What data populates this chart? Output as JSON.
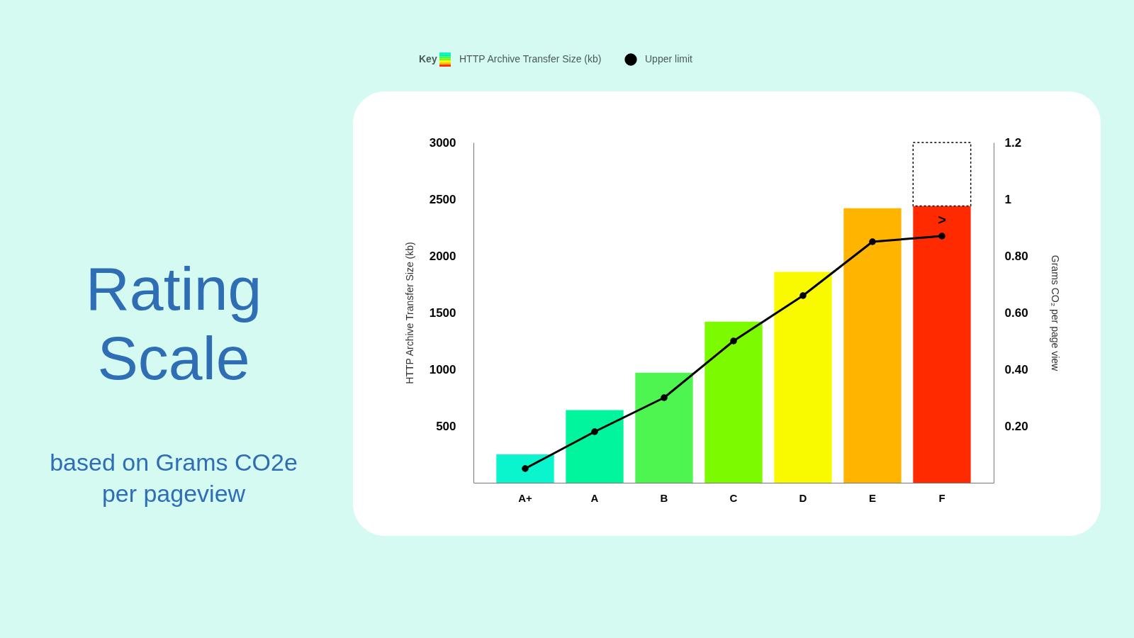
{
  "chart_data": {
    "type": "bar",
    "title": "Rating Scale",
    "subtitle": "based on Grams CO2e per pageview",
    "ylabel": "HTTP Archive Transfer Size (kb)",
    "y2label": "Grams CO₂ per page view",
    "legend_title": "Key",
    "categories": [
      "A+",
      "A",
      "B",
      "C",
      "D",
      "E",
      "F"
    ],
    "stacked": true,
    "series": [
      {
        "name": "HTTP Archive Transfer Size (kb)",
        "colors": [
          "#0af5cd",
          "#00f59c",
          "#4ef550",
          "#7cfa00",
          "#f9f900",
          "#ffb500",
          "#ff2a00"
        ],
        "values": [
          250,
          640,
          970,
          1420,
          1860,
          2420,
          2440
        ]
      },
      {
        "color": "#ffffff",
        "line_style": "dashed",
        "values": [
          null,
          null,
          null,
          null,
          null,
          null,
          560
        ]
      },
      {
        "name": "Upper limit",
        "type": "line",
        "axis": "y2",
        "color": "#000000",
        "marker": "circle",
        "values": [
          0.05,
          0.18,
          0.3,
          0.5,
          0.66,
          0.85,
          0.87
        ]
      }
    ],
    "ylim": [
      0,
      3000
    ],
    "yticks": [
      500,
      1000,
      1500,
      2000,
      2500,
      3000
    ],
    "y2lim": [
      0,
      1.2
    ],
    "y2ticks": [
      {
        "value": 0.2,
        "label": "0.20"
      },
      {
        "value": 0.4,
        "label": "0.40"
      },
      {
        "value": 0.6,
        "label": "0.60"
      },
      {
        "value": 0.8,
        "label": "0.80"
      },
      1,
      1.2
    ],
    "annotations": [
      ">"
    ],
    "grid": false,
    "legend": "top"
  }
}
